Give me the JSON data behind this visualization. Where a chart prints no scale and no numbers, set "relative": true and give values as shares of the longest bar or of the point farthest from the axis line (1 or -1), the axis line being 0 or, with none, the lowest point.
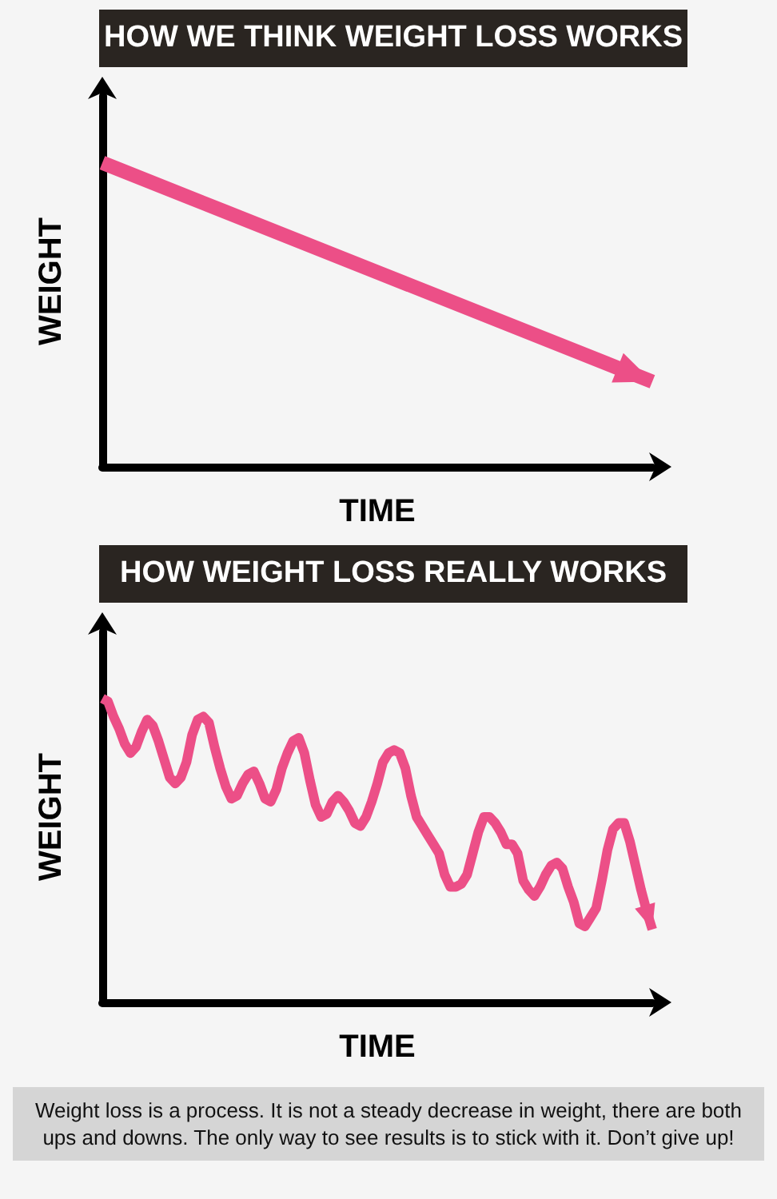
{
  "chart_data": [
    {
      "type": "line",
      "title": "HOW WE THINK WEIGHT LOSS WORKS",
      "xlabel": "TIME",
      "ylabel": "WEIGHT",
      "relative": true,
      "categories": [
        null,
        null,
        null
      ],
      "series": [
        {
          "color": "#ec4f87",
          "values": [
            1,
            0.64,
            0.28
          ]
        }
      ]
    },
    {
      "type": "line",
      "title": "HOW WEIGHT LOSS REALLY WORKS",
      "xlabel": "TIME",
      "ylabel": "WEIGHT",
      "relative": true,
      "categories": [
        null,
        null,
        null,
        null,
        null,
        null,
        null,
        null,
        null,
        null,
        null,
        null,
        null,
        null,
        null,
        null,
        null,
        null,
        null,
        null,
        null,
        null,
        null,
        null,
        null,
        null,
        null,
        null,
        null,
        null,
        null,
        null,
        null,
        null,
        null,
        null,
        null,
        null,
        null,
        null,
        null,
        null,
        null,
        null,
        null,
        null,
        null,
        null,
        null,
        null,
        null,
        null,
        null,
        null,
        null,
        null,
        null,
        null,
        null,
        null,
        null,
        null,
        null,
        null,
        null,
        null,
        null,
        null,
        null,
        null,
        null,
        null,
        null,
        null,
        null,
        null,
        null,
        null,
        null,
        null,
        null,
        null,
        null,
        null,
        null,
        null,
        null,
        null,
        null,
        null,
        null,
        null,
        null,
        null,
        null,
        null,
        null,
        null,
        null
      ],
      "annotations": [
        "Weight loss is a process. It is not a steady decrease in weight, there are both ups and downs. The only way to see results is to stick with it. Don’t give up!"
      ],
      "series": [
        {
          "color": "#ec4f87",
          "values": [
            1.0,
            0.99,
            0.94,
            0.9,
            0.85,
            0.82,
            0.84,
            0.89,
            0.93,
            0.91,
            0.86,
            0.8,
            0.74,
            0.72,
            0.74,
            0.79,
            0.88,
            0.93,
            0.94,
            0.92,
            0.84,
            0.77,
            0.71,
            0.67,
            0.68,
            0.72,
            0.75,
            0.76,
            0.72,
            0.67,
            0.66,
            0.7,
            0.77,
            0.82,
            0.86,
            0.87,
            0.82,
            0.73,
            0.65,
            0.61,
            0.62,
            0.66,
            0.68,
            0.66,
            0.63,
            0.59,
            0.58,
            0.61,
            0.66,
            0.72,
            0.79,
            0.82,
            0.83,
            0.82,
            0.77,
            0.68,
            0.61,
            0.58,
            0.55,
            0.52,
            0.49,
            0.42,
            0.38,
            0.38,
            0.39,
            0.42,
            0.49,
            0.56,
            0.61,
            0.61,
            0.59,
            0.56,
            0.52,
            0.52,
            0.49,
            0.4,
            0.37,
            0.35,
            0.38,
            0.42,
            0.45,
            0.46,
            0.44,
            0.38,
            0.33,
            0.26,
            0.25,
            0.28,
            0.31,
            0.4,
            0.5,
            0.57,
            0.59,
            0.59,
            0.53,
            0.45,
            0.37,
            0.3,
            0.24
          ]
        }
      ]
    }
  ]
}
